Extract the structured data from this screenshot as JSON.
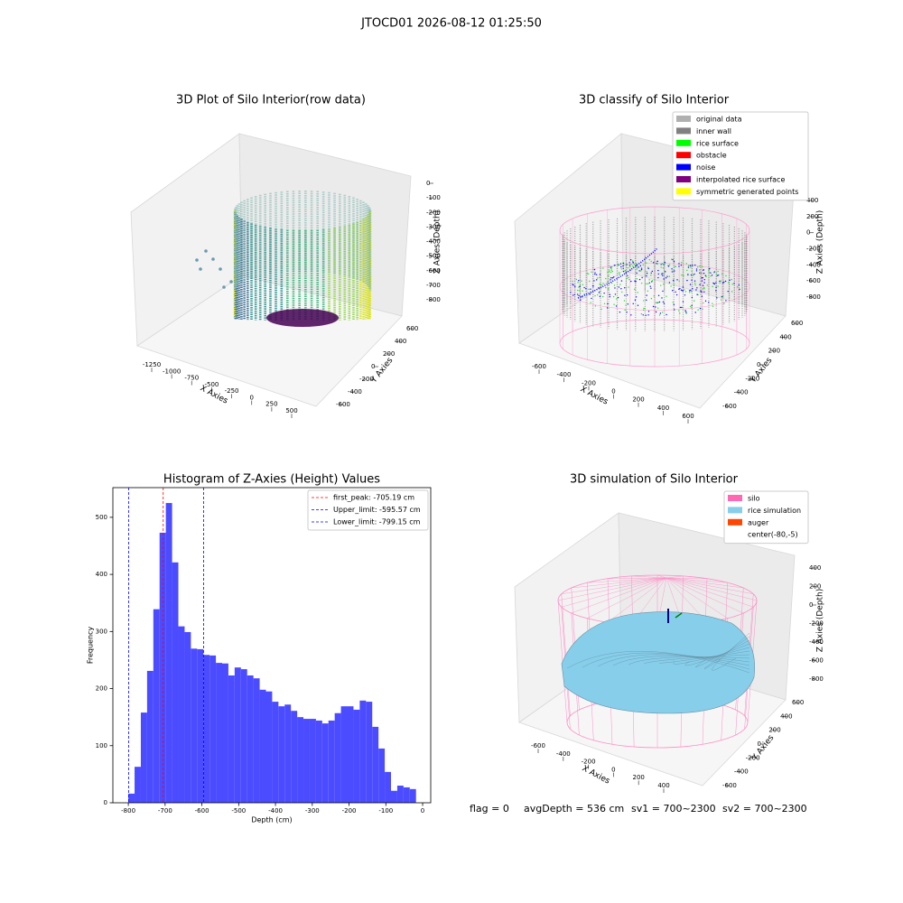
{
  "title": "JTOCD01 2026-08-12 01:25:50",
  "footer": [
    "flag = 0",
    "avgDepth = 536 cm",
    "sv1 = 700~2300",
    "sv2 = 700~2300"
  ],
  "chart_data": [
    {
      "type": "scatter3d",
      "title": "3D Plot of Silo Interior(row data)",
      "xlabel": "X Axies",
      "ylabel": "Y Axies",
      "zlabel": "Z Axies (Depth)",
      "xticks": [
        -1250,
        -1000,
        -750,
        -500,
        -250,
        0,
        250,
        500
      ],
      "yticks": [
        -600,
        -400,
        -200,
        0,
        200,
        400,
        600
      ],
      "zticks": [
        0,
        -100,
        -200,
        -300,
        -400,
        -500,
        -600,
        -700,
        -800
      ]
    },
    {
      "type": "scatter3d",
      "title": "3D classify of Silo Interior",
      "xlabel": "X Axies",
      "ylabel": "Y Axies",
      "zlabel": "Z Axies (Depth)",
      "xticks": [
        -600,
        -400,
        -200,
        0,
        200,
        400,
        600
      ],
      "yticks": [
        -600,
        -400,
        -200,
        0,
        200,
        400,
        600
      ],
      "zticks": [
        400,
        200,
        0,
        -200,
        -400,
        -600,
        -800
      ],
      "legend": [
        {
          "name": "original data",
          "color": "#b0b0b0"
        },
        {
          "name": "inner wall",
          "color": "#808080"
        },
        {
          "name": "rice surface",
          "color": "#00ff00"
        },
        {
          "name": "obstacle",
          "color": "#ff0000"
        },
        {
          "name": "noise",
          "color": "#0000ff"
        },
        {
          "name": "interpolated rice surface",
          "color": "#800080"
        },
        {
          "name": "symmetric generated points",
          "color": "#ffff00"
        }
      ]
    },
    {
      "type": "histogram",
      "title": "Histogram of Z-Axies (Height) Values",
      "xlabel": "Depth (cm)",
      "ylabel": "Frequency",
      "color": "#4b4bff",
      "bins": [
        -800,
        -783,
        -766,
        -749,
        -732,
        -715,
        -698,
        -681,
        -664,
        -647,
        -630,
        -613,
        -596,
        -579,
        -562,
        -545,
        -528,
        -511,
        -494,
        -477,
        -460,
        -443,
        -426,
        -409,
        -392,
        -375,
        -358,
        -341,
        -324,
        -307,
        -290,
        -273,
        -256,
        -239,
        -222,
        -205,
        -188,
        -171,
        -154,
        -137,
        -120,
        -103,
        -86,
        -69,
        -52,
        -35,
        -18
      ],
      "counts": [
        16,
        63,
        158,
        231,
        339,
        473,
        525,
        421,
        309,
        299,
        270,
        269,
        259,
        258,
        245,
        244,
        223,
        237,
        234,
        223,
        218,
        198,
        195,
        177,
        169,
        172,
        161,
        150,
        147,
        147,
        144,
        139,
        144,
        157,
        169,
        169,
        163,
        179,
        177,
        133,
        95,
        54,
        21,
        30,
        27,
        24
      ],
      "xlim": [
        -842,
        22
      ],
      "ylim": [
        0,
        552
      ],
      "xticks": [
        -800,
        -700,
        -600,
        -500,
        -400,
        -300,
        -200,
        -100,
        0
      ],
      "yticks": [
        0,
        100,
        200,
        300,
        400,
        500
      ],
      "vlines": [
        {
          "value": -705.19,
          "label": "first_peak: -705.19 cm",
          "color": "#ff0000"
        },
        {
          "value": -595.57,
          "label": "Upper_limit: -595.57 cm",
          "color": "#0000ff"
        },
        {
          "value": -799.15,
          "label": "Lower_limit: -799.15 cm",
          "color": "#0000ff"
        }
      ]
    },
    {
      "type": "surface3d",
      "title": "3D simulation of Silo Interior",
      "xlabel": "X Axies",
      "ylabel": "Y Axies",
      "zlabel": "Z Axies (Depth)",
      "xticks": [
        -600,
        -400,
        -200,
        0,
        200,
        400
      ],
      "yticks": [
        -600,
        -400,
        -200,
        0,
        200,
        400,
        600
      ],
      "zticks": [
        400,
        200,
        0,
        -200,
        -400,
        -600,
        -800
      ],
      "legend": [
        {
          "name": "silo",
          "color": "#ff69b4"
        },
        {
          "name": "rice simulation",
          "color": "#87ceeb"
        },
        {
          "name": "auger",
          "color": "#ff4500"
        },
        {
          "name": "center(-80,-5)",
          "color": "#ffffff"
        }
      ]
    }
  ]
}
